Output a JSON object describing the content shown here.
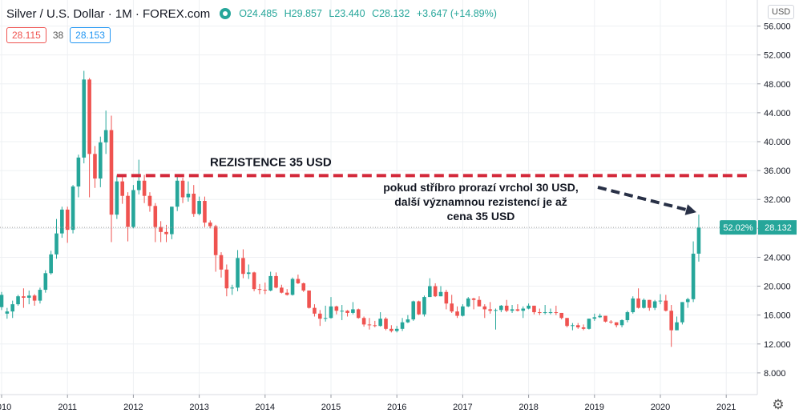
{
  "header": {
    "title": "Silver / U.S. Dollar · 1M · FOREX.com",
    "open": "O24.485",
    "high": "H29.857",
    "low": "L23.440",
    "close": "C28.132",
    "change": "+3.647 (+14.89%)"
  },
  "price_boxes": {
    "bid": "28.115",
    "spread": "38",
    "ask": "28.153"
  },
  "currency_label": "USD",
  "icons": {
    "live": "live-status-icon",
    "settings": "gear-icon"
  },
  "colors": {
    "up": "#26a69a",
    "down": "#ef5350",
    "resistance": "#d3283a",
    "arrow": "#283046",
    "grid": "#eef0f3"
  },
  "annotations": {
    "resistance_label": "REZISTENCE 35 USD",
    "note_lines": [
      "pokud stříbro prorazí vrchol 30 USD,",
      "další významnou rezistencí je až",
      "cena 35 USD"
    ]
  },
  "chart_data": {
    "type": "candlestick",
    "timeframe": "1M",
    "y_axis": {
      "labels": [
        "56.000",
        "52.000",
        "48.000",
        "44.000",
        "40.000",
        "36.000",
        "32.000",
        "28.000",
        "24.000",
        "20.000",
        "16.000",
        "12.000",
        "8.000"
      ],
      "ylim": [
        4,
        57.5
      ],
      "position": "right"
    },
    "x_axis": {
      "labels": [
        "2010",
        "2011",
        "2012",
        "2013",
        "2014",
        "2015",
        "2016",
        "2017",
        "2018",
        "2019",
        "2020",
        "2021"
      ]
    },
    "last_price_label": "28.132",
    "percent_label": "52.02%",
    "resistance_level": 35.3,
    "resistance_start": "2011-10",
    "grid": true,
    "candles": [
      {
        "t": "2010-01",
        "o": 17.1,
        "h": 19.2,
        "l": 16.7,
        "c": 18.8
      },
      {
        "t": "2010-02",
        "o": 16.2,
        "h": 17.0,
        "l": 15.5,
        "c": 16.5
      },
      {
        "t": "2010-03",
        "o": 16.5,
        "h": 18.0,
        "l": 15.6,
        "c": 17.5
      },
      {
        "t": "2010-04",
        "o": 17.5,
        "h": 18.8,
        "l": 17.3,
        "c": 18.6
      },
      {
        "t": "2010-05",
        "o": 18.6,
        "h": 19.7,
        "l": 17.0,
        "c": 18.4
      },
      {
        "t": "2010-06",
        "o": 18.4,
        "h": 19.4,
        "l": 17.5,
        "c": 18.7
      },
      {
        "t": "2010-07",
        "o": 18.7,
        "h": 18.9,
        "l": 17.3,
        "c": 18.0
      },
      {
        "t": "2010-08",
        "o": 18.0,
        "h": 19.8,
        "l": 17.6,
        "c": 19.5
      },
      {
        "t": "2010-09",
        "o": 19.5,
        "h": 22.2,
        "l": 19.1,
        "c": 21.8
      },
      {
        "t": "2010-10",
        "o": 21.8,
        "h": 24.9,
        "l": 21.6,
        "c": 24.4
      },
      {
        "t": "2010-11",
        "o": 24.4,
        "h": 29.3,
        "l": 23.8,
        "c": 27.3
      },
      {
        "t": "2010-12",
        "o": 27.3,
        "h": 31.0,
        "l": 26.7,
        "c": 30.6
      },
      {
        "t": "2011-01",
        "o": 30.6,
        "h": 31.0,
        "l": 26.0,
        "c": 27.8
      },
      {
        "t": "2011-02",
        "o": 27.8,
        "h": 34.0,
        "l": 27.3,
        "c": 33.8
      },
      {
        "t": "2011-03",
        "o": 33.8,
        "h": 38.2,
        "l": 32.3,
        "c": 37.8
      },
      {
        "t": "2011-04",
        "o": 37.8,
        "h": 49.8,
        "l": 37.0,
        "c": 48.6
      },
      {
        "t": "2011-05",
        "o": 48.6,
        "h": 48.8,
        "l": 32.3,
        "c": 38.3
      },
      {
        "t": "2011-06",
        "o": 38.3,
        "h": 39.4,
        "l": 33.6,
        "c": 34.9
      },
      {
        "t": "2011-07",
        "o": 34.9,
        "h": 40.7,
        "l": 33.7,
        "c": 39.9
      },
      {
        "t": "2011-08",
        "o": 39.9,
        "h": 44.3,
        "l": 38.3,
        "c": 41.6
      },
      {
        "t": "2011-09",
        "o": 41.6,
        "h": 43.6,
        "l": 26.1,
        "c": 29.9
      },
      {
        "t": "2011-10",
        "o": 29.9,
        "h": 35.3,
        "l": 29.3,
        "c": 34.5
      },
      {
        "t": "2011-11",
        "o": 34.5,
        "h": 35.3,
        "l": 31.4,
        "c": 32.5
      },
      {
        "t": "2011-12",
        "o": 32.5,
        "h": 33.0,
        "l": 26.2,
        "c": 28.2
      },
      {
        "t": "2012-01",
        "o": 28.2,
        "h": 34.0,
        "l": 28.0,
        "c": 33.3
      },
      {
        "t": "2012-02",
        "o": 33.3,
        "h": 37.5,
        "l": 32.7,
        "c": 34.6
      },
      {
        "t": "2012-03",
        "o": 34.6,
        "h": 35.4,
        "l": 31.5,
        "c": 32.5
      },
      {
        "t": "2012-04",
        "o": 32.5,
        "h": 33.0,
        "l": 30.3,
        "c": 31.1
      },
      {
        "t": "2012-05",
        "o": 31.1,
        "h": 31.5,
        "l": 26.1,
        "c": 28.2
      },
      {
        "t": "2012-06",
        "o": 28.2,
        "h": 29.0,
        "l": 26.1,
        "c": 27.5
      },
      {
        "t": "2012-07",
        "o": 27.5,
        "h": 28.5,
        "l": 26.1,
        "c": 27.2
      },
      {
        "t": "2012-08",
        "o": 27.2,
        "h": 31.0,
        "l": 26.5,
        "c": 31.0
      },
      {
        "t": "2012-09",
        "o": 31.0,
        "h": 35.4,
        "l": 30.4,
        "c": 34.6
      },
      {
        "t": "2012-10",
        "o": 34.6,
        "h": 35.0,
        "l": 31.5,
        "c": 32.3
      },
      {
        "t": "2012-11",
        "o": 32.3,
        "h": 34.5,
        "l": 31.7,
        "c": 32.8
      },
      {
        "t": "2012-12",
        "o": 32.8,
        "h": 34.0,
        "l": 29.6,
        "c": 30.0
      },
      {
        "t": "2013-01",
        "o": 30.0,
        "h": 32.4,
        "l": 29.8,
        "c": 31.8
      },
      {
        "t": "2013-02",
        "o": 31.8,
        "h": 32.4,
        "l": 28.2,
        "c": 28.8
      },
      {
        "t": "2013-03",
        "o": 28.8,
        "h": 29.1,
        "l": 28.0,
        "c": 28.3
      },
      {
        "t": "2013-04",
        "o": 28.3,
        "h": 28.5,
        "l": 22.0,
        "c": 24.3
      },
      {
        "t": "2013-05",
        "o": 24.3,
        "h": 24.7,
        "l": 21.2,
        "c": 22.3
      },
      {
        "t": "2013-06",
        "o": 22.3,
        "h": 23.0,
        "l": 18.6,
        "c": 19.7
      },
      {
        "t": "2013-07",
        "o": 19.7,
        "h": 20.2,
        "l": 18.8,
        "c": 19.8
      },
      {
        "t": "2013-08",
        "o": 19.8,
        "h": 25.0,
        "l": 19.3,
        "c": 23.9
      },
      {
        "t": "2013-09",
        "o": 23.9,
        "h": 25.1,
        "l": 21.1,
        "c": 21.7
      },
      {
        "t": "2013-10",
        "o": 21.7,
        "h": 23.0,
        "l": 21.0,
        "c": 21.9
      },
      {
        "t": "2013-11",
        "o": 21.9,
        "h": 22.0,
        "l": 19.3,
        "c": 19.6
      },
      {
        "t": "2013-12",
        "o": 19.6,
        "h": 20.3,
        "l": 18.9,
        "c": 19.5
      },
      {
        "t": "2014-01",
        "o": 19.5,
        "h": 20.5,
        "l": 18.9,
        "c": 19.4
      },
      {
        "t": "2014-02",
        "o": 19.4,
        "h": 22.0,
        "l": 19.3,
        "c": 21.4
      },
      {
        "t": "2014-03",
        "o": 21.4,
        "h": 21.9,
        "l": 19.7,
        "c": 19.8
      },
      {
        "t": "2014-04",
        "o": 19.8,
        "h": 20.2,
        "l": 19.0,
        "c": 19.1
      },
      {
        "t": "2014-05",
        "o": 19.1,
        "h": 19.6,
        "l": 18.7,
        "c": 18.8
      },
      {
        "t": "2014-06",
        "o": 18.8,
        "h": 21.2,
        "l": 18.7,
        "c": 21.0
      },
      {
        "t": "2014-07",
        "o": 21.0,
        "h": 21.6,
        "l": 20.3,
        "c": 20.4
      },
      {
        "t": "2014-08",
        "o": 20.4,
        "h": 20.5,
        "l": 19.2,
        "c": 19.4
      },
      {
        "t": "2014-09",
        "o": 19.4,
        "h": 19.4,
        "l": 16.9,
        "c": 17.0
      },
      {
        "t": "2014-10",
        "o": 17.0,
        "h": 17.5,
        "l": 15.8,
        "c": 16.2
      },
      {
        "t": "2014-11",
        "o": 16.2,
        "h": 16.7,
        "l": 14.5,
        "c": 15.5
      },
      {
        "t": "2014-12",
        "o": 15.5,
        "h": 17.3,
        "l": 15.1,
        "c": 15.6
      },
      {
        "t": "2015-01",
        "o": 15.6,
        "h": 18.5,
        "l": 15.5,
        "c": 17.2
      },
      {
        "t": "2015-02",
        "o": 17.2,
        "h": 17.3,
        "l": 16.1,
        "c": 16.6
      },
      {
        "t": "2015-03",
        "o": 16.6,
        "h": 17.4,
        "l": 15.3,
        "c": 16.6
      },
      {
        "t": "2015-04",
        "o": 16.6,
        "h": 16.7,
        "l": 15.8,
        "c": 16.3
      },
      {
        "t": "2015-05",
        "o": 16.3,
        "h": 17.8,
        "l": 16.1,
        "c": 16.8
      },
      {
        "t": "2015-06",
        "o": 16.8,
        "h": 16.9,
        "l": 15.5,
        "c": 15.6
      },
      {
        "t": "2015-07",
        "o": 15.6,
        "h": 15.8,
        "l": 14.4,
        "c": 14.7
      },
      {
        "t": "2015-08",
        "o": 14.7,
        "h": 15.6,
        "l": 14.0,
        "c": 14.6
      },
      {
        "t": "2015-09",
        "o": 14.6,
        "h": 15.2,
        "l": 14.3,
        "c": 14.5
      },
      {
        "t": "2015-10",
        "o": 14.5,
        "h": 16.4,
        "l": 14.4,
        "c": 15.5
      },
      {
        "t": "2015-11",
        "o": 15.5,
        "h": 15.7,
        "l": 13.9,
        "c": 14.1
      },
      {
        "t": "2015-12",
        "o": 14.1,
        "h": 14.6,
        "l": 13.6,
        "c": 13.8
      },
      {
        "t": "2016-01",
        "o": 13.8,
        "h": 14.5,
        "l": 13.6,
        "c": 14.1
      },
      {
        "t": "2016-02",
        "o": 14.1,
        "h": 15.6,
        "l": 13.8,
        "c": 15.0
      },
      {
        "t": "2016-03",
        "o": 15.0,
        "h": 16.0,
        "l": 14.9,
        "c": 15.4
      },
      {
        "t": "2016-04",
        "o": 15.4,
        "h": 18.0,
        "l": 15.2,
        "c": 17.9
      },
      {
        "t": "2016-05",
        "o": 17.9,
        "h": 18.0,
        "l": 16.0,
        "c": 16.1
      },
      {
        "t": "2016-06",
        "o": 16.1,
        "h": 18.7,
        "l": 15.8,
        "c": 18.5
      },
      {
        "t": "2016-07",
        "o": 18.5,
        "h": 21.1,
        "l": 18.5,
        "c": 20.0
      },
      {
        "t": "2016-08",
        "o": 20.0,
        "h": 20.4,
        "l": 18.5,
        "c": 18.6
      },
      {
        "t": "2016-09",
        "o": 18.6,
        "h": 20.0,
        "l": 18.6,
        "c": 19.2
      },
      {
        "t": "2016-10",
        "o": 19.2,
        "h": 19.5,
        "l": 16.8,
        "c": 17.6
      },
      {
        "t": "2016-11",
        "o": 17.6,
        "h": 18.8,
        "l": 16.3,
        "c": 16.5
      },
      {
        "t": "2016-12",
        "o": 16.5,
        "h": 17.2,
        "l": 15.6,
        "c": 15.9
      },
      {
        "t": "2017-01",
        "o": 15.9,
        "h": 17.5,
        "l": 15.8,
        "c": 17.2
      },
      {
        "t": "2017-02",
        "o": 17.2,
        "h": 18.5,
        "l": 17.1,
        "c": 18.3
      },
      {
        "t": "2017-03",
        "o": 18.3,
        "h": 18.4,
        "l": 16.8,
        "c": 18.1
      },
      {
        "t": "2017-04",
        "o": 18.1,
        "h": 18.6,
        "l": 17.2,
        "c": 17.2
      },
      {
        "t": "2017-05",
        "o": 17.2,
        "h": 17.5,
        "l": 15.6,
        "c": 16.8
      },
      {
        "t": "2017-06",
        "o": 16.8,
        "h": 17.8,
        "l": 16.2,
        "c": 16.6
      },
      {
        "t": "2017-07",
        "o": 16.6,
        "h": 16.9,
        "l": 14.0,
        "c": 16.7
      },
      {
        "t": "2017-08",
        "o": 16.7,
        "h": 17.4,
        "l": 16.4,
        "c": 17.3
      },
      {
        "t": "2017-09",
        "o": 17.3,
        "h": 18.1,
        "l": 16.4,
        "c": 16.6
      },
      {
        "t": "2017-10",
        "o": 16.6,
        "h": 17.4,
        "l": 16.3,
        "c": 16.8
      },
      {
        "t": "2017-11",
        "o": 16.8,
        "h": 17.5,
        "l": 16.5,
        "c": 16.6
      },
      {
        "t": "2017-12",
        "o": 16.6,
        "h": 17.2,
        "l": 15.6,
        "c": 16.9
      },
      {
        "t": "2018-01",
        "o": 16.9,
        "h": 17.6,
        "l": 16.8,
        "c": 17.3
      },
      {
        "t": "2018-02",
        "o": 17.3,
        "h": 17.3,
        "l": 16.1,
        "c": 16.4
      },
      {
        "t": "2018-03",
        "o": 16.4,
        "h": 16.9,
        "l": 16.0,
        "c": 16.3
      },
      {
        "t": "2018-04",
        "o": 16.3,
        "h": 17.4,
        "l": 16.1,
        "c": 16.4
      },
      {
        "t": "2018-05",
        "o": 16.4,
        "h": 16.9,
        "l": 16.1,
        "c": 16.4
      },
      {
        "t": "2018-06",
        "o": 16.4,
        "h": 17.3,
        "l": 16.0,
        "c": 16.3
      },
      {
        "t": "2018-07",
        "o": 16.3,
        "h": 16.3,
        "l": 15.4,
        "c": 15.6
      },
      {
        "t": "2018-08",
        "o": 15.6,
        "h": 15.6,
        "l": 14.3,
        "c": 14.5
      },
      {
        "t": "2018-09",
        "o": 14.5,
        "h": 14.9,
        "l": 13.9,
        "c": 14.6
      },
      {
        "t": "2018-10",
        "o": 14.6,
        "h": 14.9,
        "l": 14.1,
        "c": 14.3
      },
      {
        "t": "2018-11",
        "o": 14.3,
        "h": 14.7,
        "l": 13.9,
        "c": 14.1
      },
      {
        "t": "2018-12",
        "o": 14.1,
        "h": 15.5,
        "l": 14.0,
        "c": 15.5
      },
      {
        "t": "2019-01",
        "o": 15.5,
        "h": 16.2,
        "l": 15.2,
        "c": 15.7
      },
      {
        "t": "2019-02",
        "o": 15.7,
        "h": 16.2,
        "l": 15.6,
        "c": 15.9
      },
      {
        "t": "2019-03",
        "o": 15.9,
        "h": 15.9,
        "l": 15.0,
        "c": 15.1
      },
      {
        "t": "2019-04",
        "o": 15.1,
        "h": 15.3,
        "l": 14.8,
        "c": 15.0
      },
      {
        "t": "2019-05",
        "o": 15.0,
        "h": 15.0,
        "l": 14.3,
        "c": 14.6
      },
      {
        "t": "2019-06",
        "o": 14.6,
        "h": 15.4,
        "l": 14.3,
        "c": 15.3
      },
      {
        "t": "2019-07",
        "o": 15.3,
        "h": 16.6,
        "l": 15.0,
        "c": 16.4
      },
      {
        "t": "2019-08",
        "o": 16.4,
        "h": 18.6,
        "l": 16.2,
        "c": 18.3
      },
      {
        "t": "2019-09",
        "o": 18.3,
        "h": 19.7,
        "l": 16.9,
        "c": 17.0
      },
      {
        "t": "2019-10",
        "o": 17.0,
        "h": 18.3,
        "l": 16.9,
        "c": 18.1
      },
      {
        "t": "2019-11",
        "o": 18.1,
        "h": 18.1,
        "l": 16.6,
        "c": 17.0
      },
      {
        "t": "2019-12",
        "o": 17.0,
        "h": 18.1,
        "l": 16.7,
        "c": 17.9
      },
      {
        "t": "2020-01",
        "o": 17.9,
        "h": 18.9,
        "l": 17.5,
        "c": 18.0
      },
      {
        "t": "2020-02",
        "o": 18.0,
        "h": 18.8,
        "l": 16.5,
        "c": 16.6
      },
      {
        "t": "2020-03",
        "o": 16.6,
        "h": 17.4,
        "l": 11.6,
        "c": 13.9
      },
      {
        "t": "2020-04",
        "o": 13.9,
        "h": 15.8,
        "l": 13.9,
        "c": 15.0
      },
      {
        "t": "2020-05",
        "o": 15.0,
        "h": 17.8,
        "l": 14.7,
        "c": 17.8
      },
      {
        "t": "2020-06",
        "o": 17.8,
        "h": 18.4,
        "l": 17.0,
        "c": 18.2
      },
      {
        "t": "2020-07",
        "o": 18.2,
        "h": 26.2,
        "l": 17.8,
        "c": 24.5
      },
      {
        "t": "2020-08",
        "o": 24.5,
        "h": 29.9,
        "l": 23.4,
        "c": 28.1
      }
    ]
  }
}
